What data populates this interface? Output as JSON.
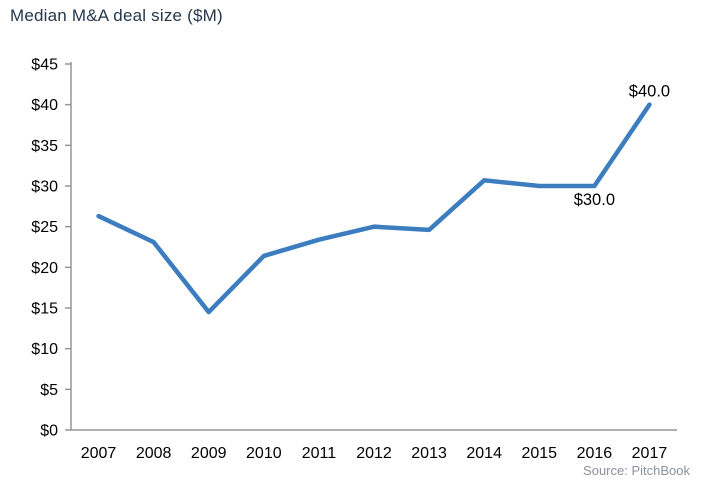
{
  "title": "Median M&A deal size ($M)",
  "source": {
    "text": "Source: PitchBook"
  },
  "colors": {
    "line": "#3B7DBE",
    "title_text": "#26374B",
    "axis": "#969696",
    "axis_text": "#000000",
    "source_text": "#8A929B"
  },
  "chart_data": {
    "type": "line",
    "title": "Median M&A deal size ($M)",
    "categories": [
      "2007",
      "2008",
      "2009",
      "2010",
      "2011",
      "2012",
      "2013",
      "2014",
      "2015",
      "2016",
      "2017"
    ],
    "values": [
      26.3,
      23.1,
      14.5,
      21.4,
      23.4,
      25.0,
      24.6,
      30.7,
      30.0,
      30.0,
      40.0
    ],
    "ylim": [
      0,
      45
    ],
    "ytick_step": 5,
    "ytick_prefix": "$",
    "grid": false,
    "legend": "none",
    "annotations": [
      {
        "index": 9,
        "text": "$30.0",
        "position": "below"
      },
      {
        "index": 10,
        "text": "$40.0",
        "position": "above"
      }
    ]
  }
}
